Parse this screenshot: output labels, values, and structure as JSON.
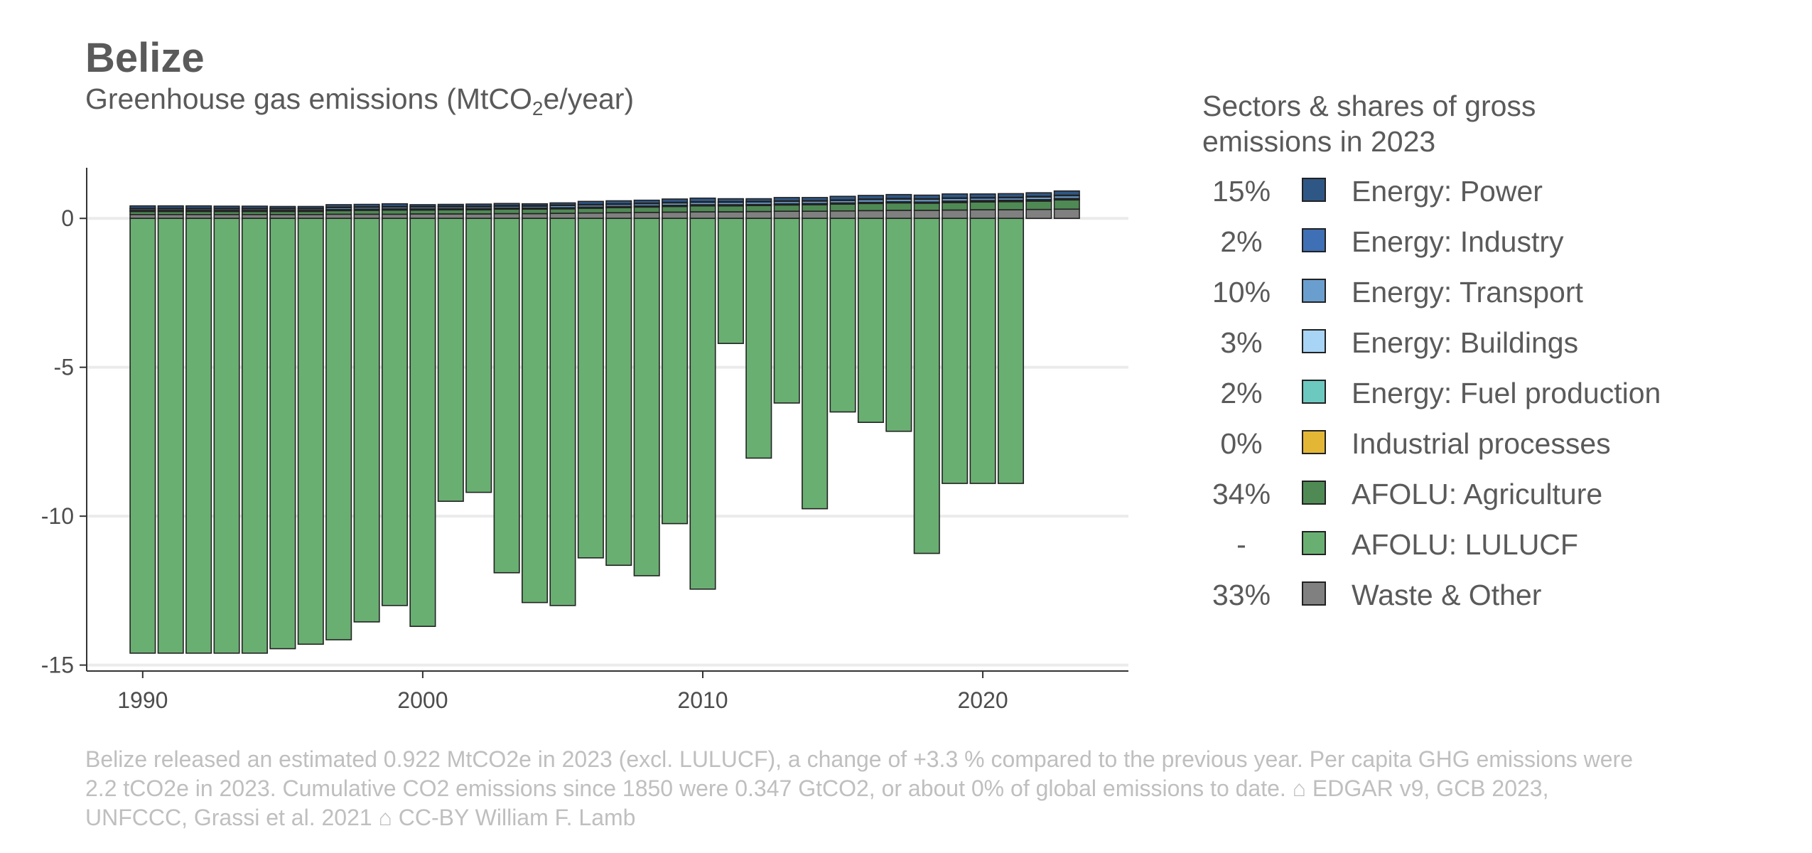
{
  "title": "Belize",
  "subtitle": {
    "prefix": "Greenhouse gas emissions (MtCO",
    "sub": "2",
    "suffix": "e/year)"
  },
  "legend": {
    "title": "Sectors & shares of gross emissions in 2023",
    "items": [
      {
        "share": "15%",
        "label": "Energy: Power",
        "color": "#2f5786"
      },
      {
        "share": "2%",
        "label": "Energy: Industry",
        "color": "#3f6fb5"
      },
      {
        "share": "10%",
        "label": "Energy: Transport",
        "color": "#6a9ecf"
      },
      {
        "share": "3%",
        "label": "Energy: Buildings",
        "color": "#a8d4f5"
      },
      {
        "share": "2%",
        "label": "Energy: Fuel production",
        "color": "#6cc9c0"
      },
      {
        "share": "0%",
        "label": "Industrial processes",
        "color": "#e3b735"
      },
      {
        "share": "34%",
        "label": "AFOLU: Agriculture",
        "color": "#4f8a55"
      },
      {
        "share": "-",
        "label": "AFOLU: LULUCF",
        "color": "#6aaf72"
      },
      {
        "share": "33%",
        "label": "Waste & Other",
        "color": "#808080"
      }
    ]
  },
  "caption": "Belize released an estimated 0.922 MtCO2e in 2023 (excl. LULUCF), a change of +3.3 % compared to the previous year. Per capita GHG emissions were 2.2 tCO2e in 2023. Cumulative CO2 emissions since 1850 were 0.347 GtCO2, or about 0% of global emissions to date. ⌂ EDGAR v9, GCB 2023, UNFCCC, Grassi et al. 2021 ⌂ CC-BY William F. Lamb",
  "chart_data": {
    "type": "bar",
    "stacked": true,
    "x": [
      1990,
      1991,
      1992,
      1993,
      1994,
      1995,
      1996,
      1997,
      1998,
      1999,
      2000,
      2001,
      2002,
      2003,
      2004,
      2005,
      2006,
      2007,
      2008,
      2009,
      2010,
      2011,
      2012,
      2013,
      2014,
      2015,
      2016,
      2017,
      2018,
      2019,
      2020,
      2021,
      2022,
      2023
    ],
    "xticks": [
      1990,
      2000,
      2010,
      2020
    ],
    "yticks": [
      0,
      -5,
      -10,
      -15
    ],
    "ylim": [
      -15.2,
      1.7
    ],
    "xlim": [
      1988,
      2025.2
    ],
    "grid": "horizontal",
    "legend_position": "right",
    "series": [
      {
        "name": "Waste & Other",
        "values": [
          0.13,
          0.13,
          0.13,
          0.13,
          0.13,
          0.13,
          0.13,
          0.14,
          0.14,
          0.14,
          0.15,
          0.15,
          0.15,
          0.16,
          0.16,
          0.17,
          0.18,
          0.19,
          0.2,
          0.21,
          0.22,
          0.22,
          0.23,
          0.24,
          0.24,
          0.25,
          0.26,
          0.27,
          0.27,
          0.28,
          0.29,
          0.29,
          0.3,
          0.31
        ]
      },
      {
        "name": "AFOLU: Agriculture",
        "values": [
          0.1,
          0.1,
          0.1,
          0.1,
          0.1,
          0.1,
          0.1,
          0.12,
          0.13,
          0.14,
          0.13,
          0.14,
          0.14,
          0.15,
          0.15,
          0.15,
          0.16,
          0.17,
          0.18,
          0.19,
          0.2,
          0.2,
          0.2,
          0.21,
          0.22,
          0.23,
          0.24,
          0.25,
          0.24,
          0.25,
          0.26,
          0.27,
          0.28,
          0.31
        ]
      },
      {
        "name": "Industrial processes",
        "values": [
          0,
          0,
          0,
          0,
          0,
          0,
          0,
          0,
          0,
          0,
          0,
          0,
          0,
          0,
          0,
          0,
          0,
          0,
          0,
          0,
          0,
          0,
          0,
          0,
          0,
          0,
          0,
          0,
          0,
          0,
          0,
          0,
          0,
          0
        ]
      },
      {
        "name": "Energy: Fuel production",
        "values": [
          0.02,
          0.02,
          0.02,
          0.02,
          0.02,
          0.02,
          0.02,
          0.02,
          0.02,
          0.02,
          0.02,
          0.02,
          0.02,
          0.02,
          0.02,
          0.02,
          0.02,
          0.02,
          0.02,
          0.02,
          0.02,
          0.02,
          0.02,
          0.02,
          0.02,
          0.02,
          0.02,
          0.02,
          0.02,
          0.02,
          0.02,
          0.02,
          0.02,
          0.02
        ]
      },
      {
        "name": "Energy: Buildings",
        "values": [
          0.02,
          0.02,
          0.02,
          0.02,
          0.02,
          0.02,
          0.02,
          0.02,
          0.02,
          0.02,
          0.02,
          0.02,
          0.02,
          0.02,
          0.02,
          0.02,
          0.02,
          0.02,
          0.02,
          0.02,
          0.02,
          0.02,
          0.02,
          0.02,
          0.02,
          0.02,
          0.02,
          0.02,
          0.02,
          0.03,
          0.03,
          0.03,
          0.03,
          0.03
        ]
      },
      {
        "name": "Energy: Transport",
        "values": [
          0.05,
          0.05,
          0.05,
          0.05,
          0.05,
          0.05,
          0.05,
          0.06,
          0.06,
          0.06,
          0.06,
          0.06,
          0.06,
          0.06,
          0.06,
          0.07,
          0.07,
          0.07,
          0.07,
          0.08,
          0.08,
          0.08,
          0.08,
          0.08,
          0.08,
          0.08,
          0.09,
          0.09,
          0.09,
          0.09,
          0.08,
          0.08,
          0.09,
          0.09
        ]
      },
      {
        "name": "Energy: Industry",
        "values": [
          0.02,
          0.02,
          0.02,
          0.02,
          0.02,
          0.02,
          0.02,
          0.02,
          0.02,
          0.02,
          0.02,
          0.02,
          0.02,
          0.02,
          0.02,
          0.02,
          0.02,
          0.02,
          0.02,
          0.02,
          0.02,
          0.02,
          0.02,
          0.02,
          0.02,
          0.02,
          0.02,
          0.02,
          0.02,
          0.02,
          0.02,
          0.02,
          0.02,
          0.02
        ]
      },
      {
        "name": "Energy: Power",
        "values": [
          0.08,
          0.08,
          0.08,
          0.07,
          0.07,
          0.06,
          0.06,
          0.08,
          0.08,
          0.09,
          0.06,
          0.06,
          0.07,
          0.07,
          0.06,
          0.07,
          0.1,
          0.1,
          0.1,
          0.11,
          0.12,
          0.1,
          0.09,
          0.11,
          0.1,
          0.12,
          0.12,
          0.13,
          0.12,
          0.13,
          0.12,
          0.12,
          0.12,
          0.14
        ]
      },
      {
        "name": "AFOLU: LULUCF",
        "values": [
          -14.6,
          -14.6,
          -14.6,
          -14.6,
          -14.6,
          -14.45,
          -14.3,
          -14.15,
          -13.55,
          -13.0,
          -13.7,
          -9.5,
          -9.2,
          -11.9,
          -12.9,
          -13.0,
          -11.4,
          -11.65,
          -12.0,
          -10.25,
          -12.45,
          -4.2,
          -8.05,
          -6.2,
          -9.75,
          -6.5,
          -6.85,
          -7.15,
          -11.25,
          -8.9,
          -8.9,
          -8.9,
          0,
          0
        ]
      }
    ]
  }
}
